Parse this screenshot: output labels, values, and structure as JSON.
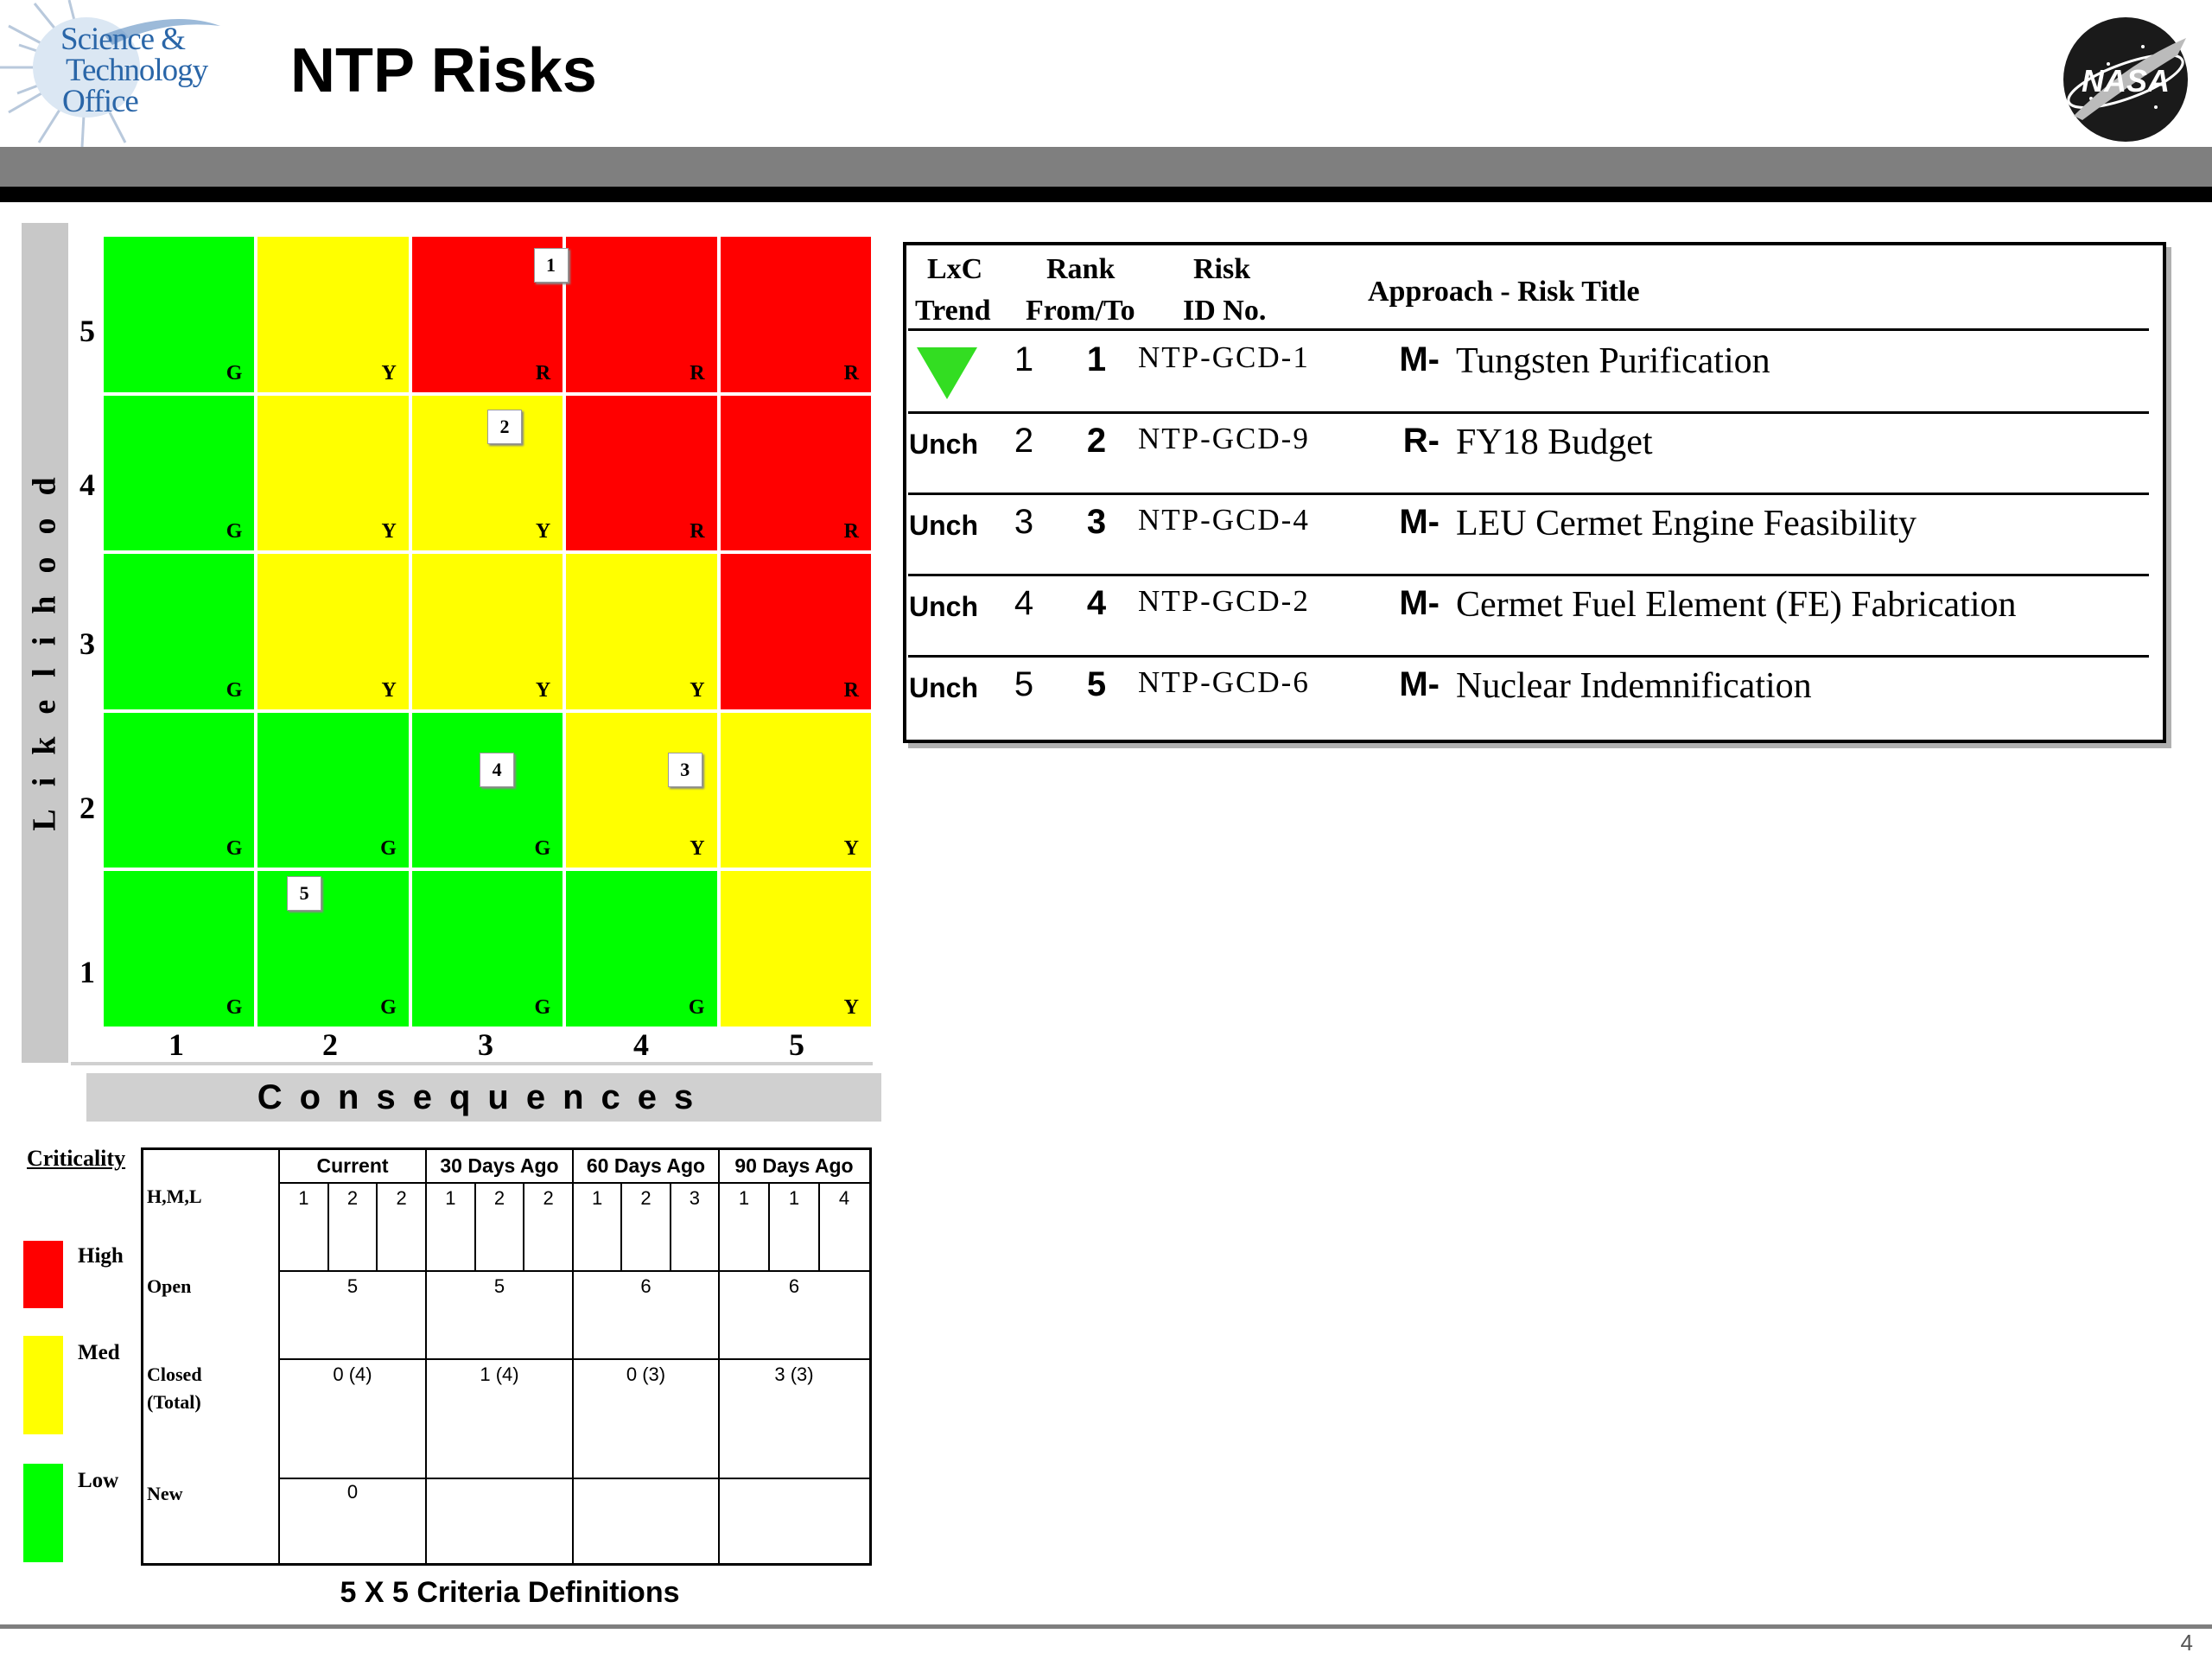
{
  "header": {
    "title": "NTP Risks",
    "logo_text": [
      "Science &",
      "Technology",
      "Office"
    ],
    "nasa_logo_text": "NASA"
  },
  "matrix": {
    "y_axis_title": "Likelihood",
    "x_axis_title": "Consequences",
    "likelihood_labels": [
      "5",
      "4",
      "3",
      "2",
      "1"
    ],
    "consequence_labels": [
      "1",
      "2",
      "3",
      "4",
      "5"
    ],
    "rows": [
      [
        "G",
        "Y",
        "R",
        "R",
        "R"
      ],
      [
        "G",
        "Y",
        "Y",
        "R",
        "R"
      ],
      [
        "G",
        "Y",
        "Y",
        "Y",
        "R"
      ],
      [
        "G",
        "G",
        "G",
        "Y",
        "Y"
      ],
      [
        "G",
        "G",
        "G",
        "G",
        "Y"
      ]
    ],
    "colors": {
      "G": "#00ff00",
      "Y": "#ffff00",
      "R": "#ff0000"
    },
    "risks": [
      {
        "rank": "1",
        "likelihood": 5,
        "consequence": 3
      },
      {
        "rank": "2",
        "likelihood": 4,
        "consequence": 3
      },
      {
        "rank": "3",
        "likelihood": 2,
        "consequence": 4
      },
      {
        "rank": "4",
        "likelihood": 2,
        "consequence": 3
      },
      {
        "rank": "5",
        "likelihood": 1,
        "consequence": 2
      }
    ]
  },
  "criticality": {
    "title": "Criticality",
    "levels": [
      {
        "label": "High",
        "color": "#ff0000"
      },
      {
        "label": "Med",
        "color": "#ffff00"
      },
      {
        "label": "Low",
        "color": "#00ff00"
      }
    ]
  },
  "summary_table": {
    "caption": "5 X 5 Criteria Definitions",
    "periods": [
      "Current",
      "30 Days Ago",
      "60 Days Ago",
      "90 Days Ago"
    ],
    "row_labels": {
      "hml": "H,M,L",
      "open": "Open",
      "closed": "Closed",
      "total": "(Total)",
      "new": "New"
    },
    "hml": [
      [
        "1",
        "2",
        "2"
      ],
      [
        "1",
        "2",
        "2"
      ],
      [
        "1",
        "2",
        "3"
      ],
      [
        "1",
        "1",
        "4"
      ]
    ],
    "open": [
      "5",
      "5",
      "6",
      "6"
    ],
    "closed": [
      "0 (4)",
      "1 (4)",
      "0 (3)",
      "3 (3)"
    ],
    "new": [
      "0",
      "",
      "",
      ""
    ]
  },
  "risk_table": {
    "headers": {
      "lxc": "LxC",
      "trend": "Trend",
      "rank": "Rank",
      "from_to": "From/To",
      "risk": "Risk",
      "id_no": "ID No.",
      "approach_title": "Approach - Risk Title"
    },
    "rows": [
      {
        "trend": "",
        "trend_icon": "down-triangle-green",
        "from": "1",
        "to": "1",
        "id": "NTP-GCD-1",
        "approach": "M-",
        "title": "Tungsten Purification"
      },
      {
        "trend": "Unch",
        "from": "2",
        "to": "2",
        "id": "NTP-GCD-9",
        "approach": "R-",
        "title": "FY18 Budget"
      },
      {
        "trend": "Unch",
        "from": "3",
        "to": "3",
        "id": "NTP-GCD-4",
        "approach": "M-",
        "title": "LEU Cermet Engine Feasibility"
      },
      {
        "trend": "Unch",
        "from": "4",
        "to": "4",
        "id": "NTP-GCD-2",
        "approach": "M-",
        "title": "Cermet Fuel Element (FE) Fabrication"
      },
      {
        "trend": "Unch",
        "from": "5",
        "to": "5",
        "id": "NTP-GCD-6",
        "approach": "M-",
        "title": "Nuclear Indemnification"
      }
    ]
  },
  "footer": {
    "page_number": "4"
  }
}
